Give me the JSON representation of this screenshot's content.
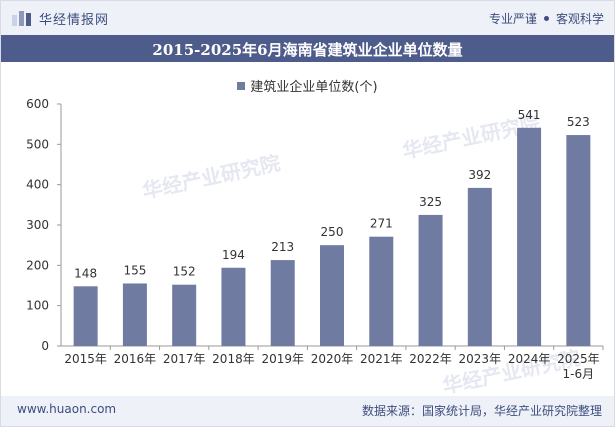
{
  "brand": {
    "name": "华经情报网"
  },
  "tags": [
    "专业严谨",
    "客观科学"
  ],
  "footer": {
    "site": "www.huaon.com",
    "source": "数据来源：国家统计局，华经产业研究院整理"
  },
  "watermark": {
    "name": "华经产业研究院",
    "url": "www.huaon.com"
  },
  "colors": {
    "bar": "#6f7ba1",
    "title_bg": "#4e5c8b",
    "brand": "#3d4d7e"
  },
  "chart_data": {
    "type": "bar",
    "title": "2015-2025年6月海南省建筑业企业单位数量",
    "categories": [
      "2015年",
      "2016年",
      "2017年",
      "2018年",
      "2019年",
      "2020年",
      "2021年",
      "2022年",
      "2023年",
      "2024年",
      "2025年\n1-6月"
    ],
    "series": [
      {
        "name": "建筑业企业单位数(个)",
        "values": [
          148,
          155,
          152,
          194,
          213,
          250,
          271,
          325,
          392,
          541,
          523
        ]
      }
    ],
    "yticks": [
      0,
      100,
      200,
      300,
      400,
      500,
      600
    ],
    "ylim": [
      0,
      600
    ],
    "grid": false,
    "legend": "top-center",
    "data_labels": true
  }
}
